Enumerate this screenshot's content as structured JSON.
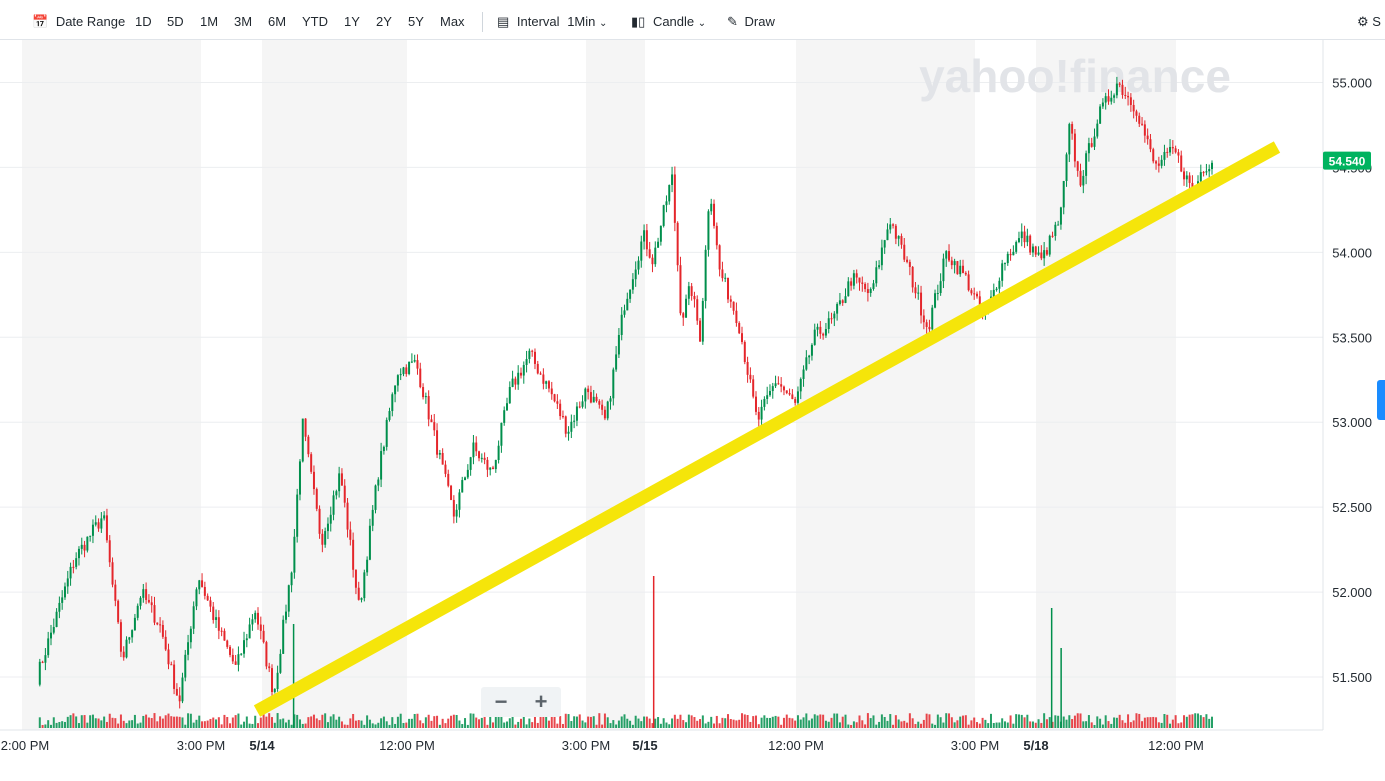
{
  "toolbar": {
    "date_range": "Date Range",
    "ranges": [
      "1D",
      "5D",
      "1M",
      "3M",
      "6M",
      "YTD",
      "1Y",
      "2Y",
      "5Y",
      "Max"
    ],
    "interval_label": "Interval",
    "interval_value": "1Min",
    "chart_type": "Candle",
    "draw": "Draw",
    "settings": "S"
  },
  "watermark": "yahoo!finance",
  "chart_data": {
    "type": "candlestick",
    "ylim": [
      51.2,
      55.25
    ],
    "y_ticks": [
      "51.500",
      "52.000",
      "52.500",
      "53.000",
      "53.500",
      "54.000",
      "54.500",
      "55.000"
    ],
    "x_ticks": [
      "2:00 PM",
      "3:00 PM",
      "5/14",
      "12:00 PM",
      "3:00 PM",
      "5/15",
      "12:00 PM",
      "3:00 PM",
      "5/18",
      "12:00 PM"
    ],
    "last_price": "54.540",
    "price_path": [
      [
        0,
        51.5
      ],
      [
        4,
        52.2
      ],
      [
        7,
        52.45
      ],
      [
        9,
        51.6
      ],
      [
        11,
        52.0
      ],
      [
        13,
        51.8
      ],
      [
        15,
        51.35
      ],
      [
        17,
        52.1
      ],
      [
        19,
        51.8
      ],
      [
        21,
        51.55
      ],
      [
        23,
        51.9
      ],
      [
        25,
        51.4
      ],
      [
        27,
        52.2
      ],
      [
        28,
        53.0
      ],
      [
        30,
        52.3
      ],
      [
        32,
        52.7
      ],
      [
        34,
        51.9
      ],
      [
        36,
        52.7
      ],
      [
        38,
        53.3
      ],
      [
        40,
        53.35
      ],
      [
        42,
        52.9
      ],
      [
        44,
        52.45
      ],
      [
        46,
        52.85
      ],
      [
        48,
        52.7
      ],
      [
        50,
        53.2
      ],
      [
        52,
        53.4
      ],
      [
        54,
        53.2
      ],
      [
        56,
        52.95
      ],
      [
        58,
        53.2
      ],
      [
        60,
        53.0
      ],
      [
        62,
        53.7
      ],
      [
        64,
        54.1
      ],
      [
        65,
        53.95
      ],
      [
        67,
        54.45
      ],
      [
        68,
        53.6
      ],
      [
        69,
        53.8
      ],
      [
        70,
        53.5
      ],
      [
        71,
        54.4
      ],
      [
        72,
        53.9
      ],
      [
        74,
        53.6
      ],
      [
        76,
        53.0
      ],
      [
        78,
        53.25
      ],
      [
        80,
        53.1
      ],
      [
        82,
        53.5
      ],
      [
        84,
        53.6
      ],
      [
        86,
        53.85
      ],
      [
        88,
        53.75
      ],
      [
        90,
        54.2
      ],
      [
        92,
        53.9
      ],
      [
        94,
        53.55
      ],
      [
        96,
        54.0
      ],
      [
        98,
        53.85
      ],
      [
        100,
        53.6
      ],
      [
        102,
        53.95
      ],
      [
        104,
        54.1
      ],
      [
        106,
        53.95
      ],
      [
        108,
        54.2
      ],
      [
        109,
        54.75
      ],
      [
        110,
        54.4
      ],
      [
        112,
        54.8
      ],
      [
        114,
        55.0
      ],
      [
        116,
        54.85
      ],
      [
        118,
        54.5
      ],
      [
        120,
        54.6
      ],
      [
        122,
        54.35
      ],
      [
        123,
        54.5
      ],
      [
        124,
        54.54
      ]
    ],
    "volume_spikes": [
      [
        27,
        0.65
      ],
      [
        65,
        0.95
      ],
      [
        107,
        0.75
      ],
      [
        108,
        0.5
      ]
    ],
    "trendline": {
      "start": [
        1.2,
        51.3
      ],
      "end": [
        1.31,
        54.62
      ]
    }
  },
  "zoom": {
    "minus": "−",
    "plus": "+"
  }
}
